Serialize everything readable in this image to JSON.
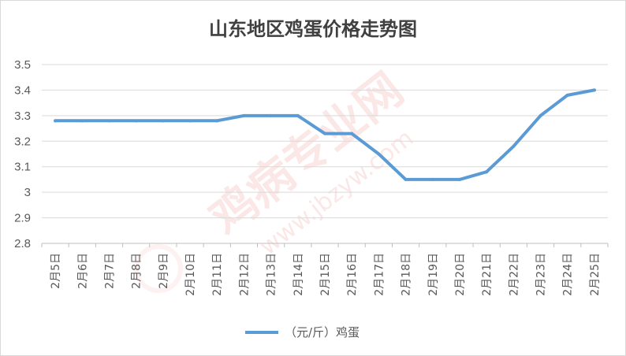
{
  "chart_data": {
    "type": "line",
    "title": "山东地区鸡蛋价格走势图",
    "categories": [
      "2月5日",
      "2月6日",
      "2月7日",
      "2月8日",
      "2月9日",
      "2月10日",
      "2月11日",
      "2月12日",
      "2月13日",
      "2月14日",
      "2月15日",
      "2月16日",
      "2月17日",
      "2月18日",
      "2月19日",
      "2月20日",
      "2月21日",
      "2月22日",
      "2月23日",
      "2月24日",
      "2月25日"
    ],
    "series": [
      {
        "name": "（元/斤）鸡蛋",
        "values": [
          3.28,
          3.28,
          3.28,
          3.28,
          3.28,
          3.28,
          3.28,
          3.3,
          3.3,
          3.3,
          3.23,
          3.23,
          3.15,
          3.05,
          3.05,
          3.05,
          3.08,
          3.18,
          3.3,
          3.38,
          3.4
        ],
        "color": "#5b9bd5"
      }
    ],
    "ylim": [
      2.8,
      3.5
    ],
    "yticks": [
      "2.8",
      "2.9",
      "3",
      "3.1",
      "3.2",
      "3.3",
      "3.4",
      "3.5"
    ],
    "xlabel": "",
    "ylabel": "",
    "grid": true,
    "legend": "bottom"
  },
  "watermark": {
    "brand": "鸡病专业网",
    "url": "www.jbzyw.com"
  }
}
